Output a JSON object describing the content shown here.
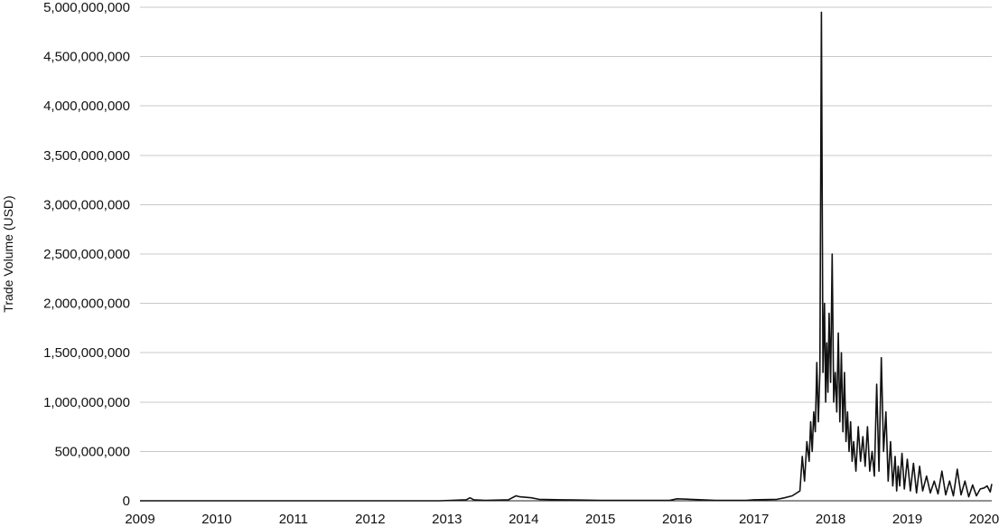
{
  "chart_data": {
    "type": "line",
    "title": "",
    "xlabel": "",
    "ylabel": "Trade Volume (USD)",
    "x_ticks": [
      "2009",
      "2010",
      "2011",
      "2012",
      "2013",
      "2014",
      "2015",
      "2016",
      "2017",
      "2018",
      "2019",
      "2020"
    ],
    "xlim": [
      2009.0,
      2020.1
    ],
    "y_ticks": [
      "0",
      "500,000,000",
      "1,000,000,000",
      "1,500,000,000",
      "2,000,000,000",
      "2,500,000,000",
      "3,000,000,000",
      "3,500,000,000",
      "4,000,000,000",
      "4,500,000,000",
      "5,000,000,000"
    ],
    "ylim": [
      0,
      5000000000
    ],
    "grid": "horizontal",
    "legend": "none",
    "series": [
      {
        "color": "#111111",
        "x": [
          2009.0,
          2010.0,
          2011.0,
          2012.0,
          2012.9,
          2013.25,
          2013.3,
          2013.35,
          2013.5,
          2013.8,
          2013.9,
          2013.95,
          2014.1,
          2014.2,
          2014.5,
          2015.0,
          2015.5,
          2015.9,
          2016.0,
          2016.5,
          2016.9,
          2017.0,
          2017.3,
          2017.4,
          2017.5,
          2017.6,
          2017.63,
          2017.66,
          2017.69,
          2017.72,
          2017.74,
          2017.76,
          2017.78,
          2017.8,
          2017.82,
          2017.84,
          2017.86,
          2017.88,
          2017.9,
          2017.92,
          2017.935,
          2017.95,
          2017.965,
          2017.98,
          2018.0,
          2018.02,
          2018.04,
          2018.06,
          2018.08,
          2018.1,
          2018.12,
          2018.14,
          2018.16,
          2018.18,
          2018.2,
          2018.22,
          2018.24,
          2018.26,
          2018.28,
          2018.3,
          2018.33,
          2018.36,
          2018.39,
          2018.42,
          2018.45,
          2018.48,
          2018.51,
          2018.54,
          2018.57,
          2018.6,
          2018.63,
          2018.66,
          2018.69,
          2018.72,
          2018.75,
          2018.78,
          2018.81,
          2018.84,
          2018.86,
          2018.88,
          2018.9,
          2018.93,
          2018.96,
          2019.0,
          2019.04,
          2019.08,
          2019.12,
          2019.16,
          2019.2,
          2019.25,
          2019.3,
          2019.35,
          2019.4,
          2019.45,
          2019.5,
          2019.55,
          2019.6,
          2019.65,
          2019.7,
          2019.75,
          2019.8,
          2019.85,
          2019.9,
          2019.95,
          2020.0,
          2020.04,
          2020.08,
          2020.1
        ],
        "values": [
          0,
          0,
          0,
          0,
          0,
          10000000,
          30000000,
          10000000,
          5000000,
          10000000,
          50000000,
          40000000,
          30000000,
          15000000,
          10000000,
          5000000,
          5000000,
          5000000,
          20000000,
          5000000,
          5000000,
          10000000,
          15000000,
          30000000,
          50000000,
          100000000,
          450000000,
          200000000,
          600000000,
          400000000,
          800000000,
          500000000,
          900000000,
          700000000,
          1400000000,
          800000000,
          1300000000,
          4950000000,
          1300000000,
          2000000000,
          1000000000,
          1600000000,
          1100000000,
          1900000000,
          1200000000,
          2500000000,
          1000000000,
          1300000000,
          900000000,
          1700000000,
          800000000,
          1500000000,
          700000000,
          1300000000,
          600000000,
          900000000,
          500000000,
          800000000,
          400000000,
          600000000,
          300000000,
          750000000,
          400000000,
          650000000,
          350000000,
          750000000,
          300000000,
          500000000,
          250000000,
          1180000000,
          300000000,
          1450000000,
          500000000,
          900000000,
          200000000,
          600000000,
          150000000,
          450000000,
          100000000,
          350000000,
          150000000,
          480000000,
          120000000,
          420000000,
          100000000,
          380000000,
          80000000,
          350000000,
          100000000,
          250000000,
          80000000,
          200000000,
          70000000,
          300000000,
          60000000,
          200000000,
          50000000,
          320000000,
          60000000,
          200000000,
          40000000,
          160000000,
          50000000,
          120000000,
          130000000,
          150000000,
          90000000,
          170000000
        ]
      }
    ]
  }
}
